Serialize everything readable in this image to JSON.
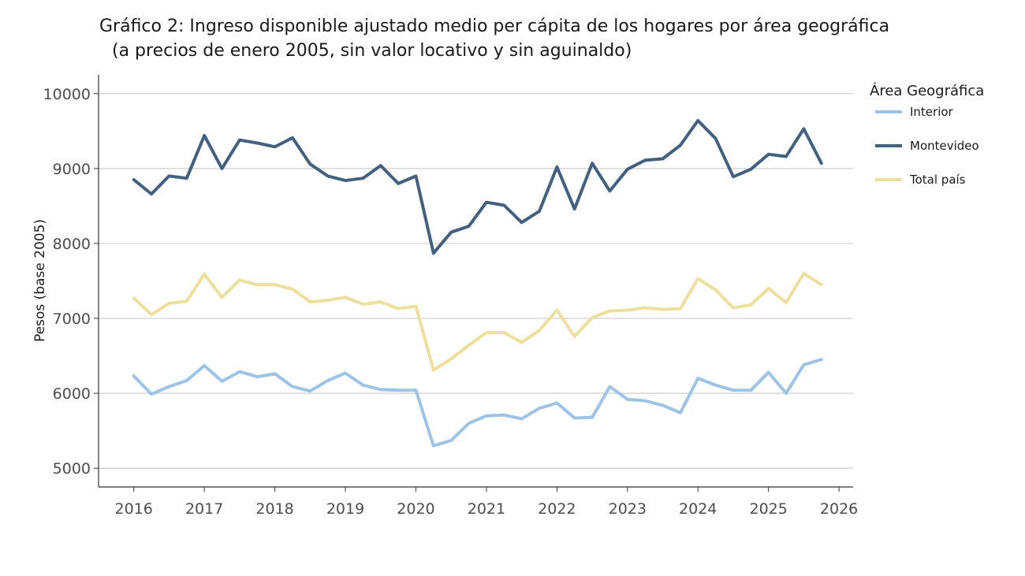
{
  "chart_data": {
    "type": "line",
    "title": "Gráfico 2: Ingreso disponible ajustado medio per cápita de los hogares por área geográfica",
    "subtitle": "(a precios de enero 2005, sin valor locativo y sin aguinaldo)",
    "xlabel": "",
    "ylabel": "Pesos (base 2005)",
    "xlim": [
      2015.5,
      2026.2
    ],
    "ylim": [
      4750,
      10250
    ],
    "xticks": [
      2016,
      2017,
      2018,
      2019,
      2020,
      2021,
      2022,
      2023,
      2024,
      2025,
      2026
    ],
    "yticks": [
      5000,
      6000,
      7000,
      8000,
      9000,
      10000
    ],
    "grid": "horizontal",
    "legend_title": "Área Geográfica",
    "legend_position": "right",
    "x": [
      2016.0,
      2016.25,
      2016.5,
      2016.75,
      2017.0,
      2017.25,
      2017.5,
      2017.75,
      2018.0,
      2018.25,
      2018.5,
      2018.75,
      2019.0,
      2019.25,
      2019.5,
      2019.75,
      2020.0,
      2020.25,
      2020.5,
      2020.75,
      2021.0,
      2021.25,
      2021.5,
      2021.75,
      2022.0,
      2022.25,
      2022.5,
      2022.75,
      2023.0,
      2023.25,
      2023.5,
      2023.75,
      2024.0,
      2024.25,
      2024.5,
      2024.75,
      2025.0,
      2025.25,
      2025.5,
      2025.75
    ],
    "series": [
      {
        "name": "Interior",
        "color": "#9dc3e6",
        "values": [
          6230,
          5990,
          6090,
          6170,
          6370,
          6160,
          6290,
          6220,
          6260,
          6090,
          6030,
          6170,
          6270,
          6110,
          6050,
          6040,
          6040,
          5300,
          5370,
          5600,
          5700,
          5710,
          5660,
          5800,
          5870,
          5670,
          5680,
          6090,
          5920,
          5900,
          5840,
          5740,
          6200,
          6110,
          6040,
          6040,
          6280,
          6000,
          6380,
          6450
        ]
      },
      {
        "name": "Montevideo",
        "color": "#44607f",
        "values": [
          8850,
          8660,
          8900,
          8870,
          9440,
          9000,
          9380,
          9340,
          9290,
          9410,
          9060,
          8900,
          8840,
          8870,
          9040,
          8800,
          8900,
          7870,
          8150,
          8230,
          8550,
          8510,
          8280,
          8430,
          9020,
          8460,
          9070,
          8700,
          8990,
          9110,
          9130,
          9310,
          9640,
          9400,
          8890,
          8990,
          9190,
          9160,
          9530,
          9070
        ]
      },
      {
        "name": "Total país",
        "color": "#eedf9c",
        "values": [
          7270,
          7050,
          7200,
          7230,
          7590,
          7280,
          7510,
          7450,
          7450,
          7390,
          7220,
          7240,
          7280,
          7190,
          7220,
          7130,
          7160,
          6310,
          6460,
          6640,
          6810,
          6810,
          6680,
          6840,
          7110,
          6760,
          7010,
          7100,
          7110,
          7140,
          7120,
          7130,
          7530,
          7380,
          7140,
          7180,
          7400,
          7210,
          7600,
          7450
        ]
      }
    ]
  }
}
